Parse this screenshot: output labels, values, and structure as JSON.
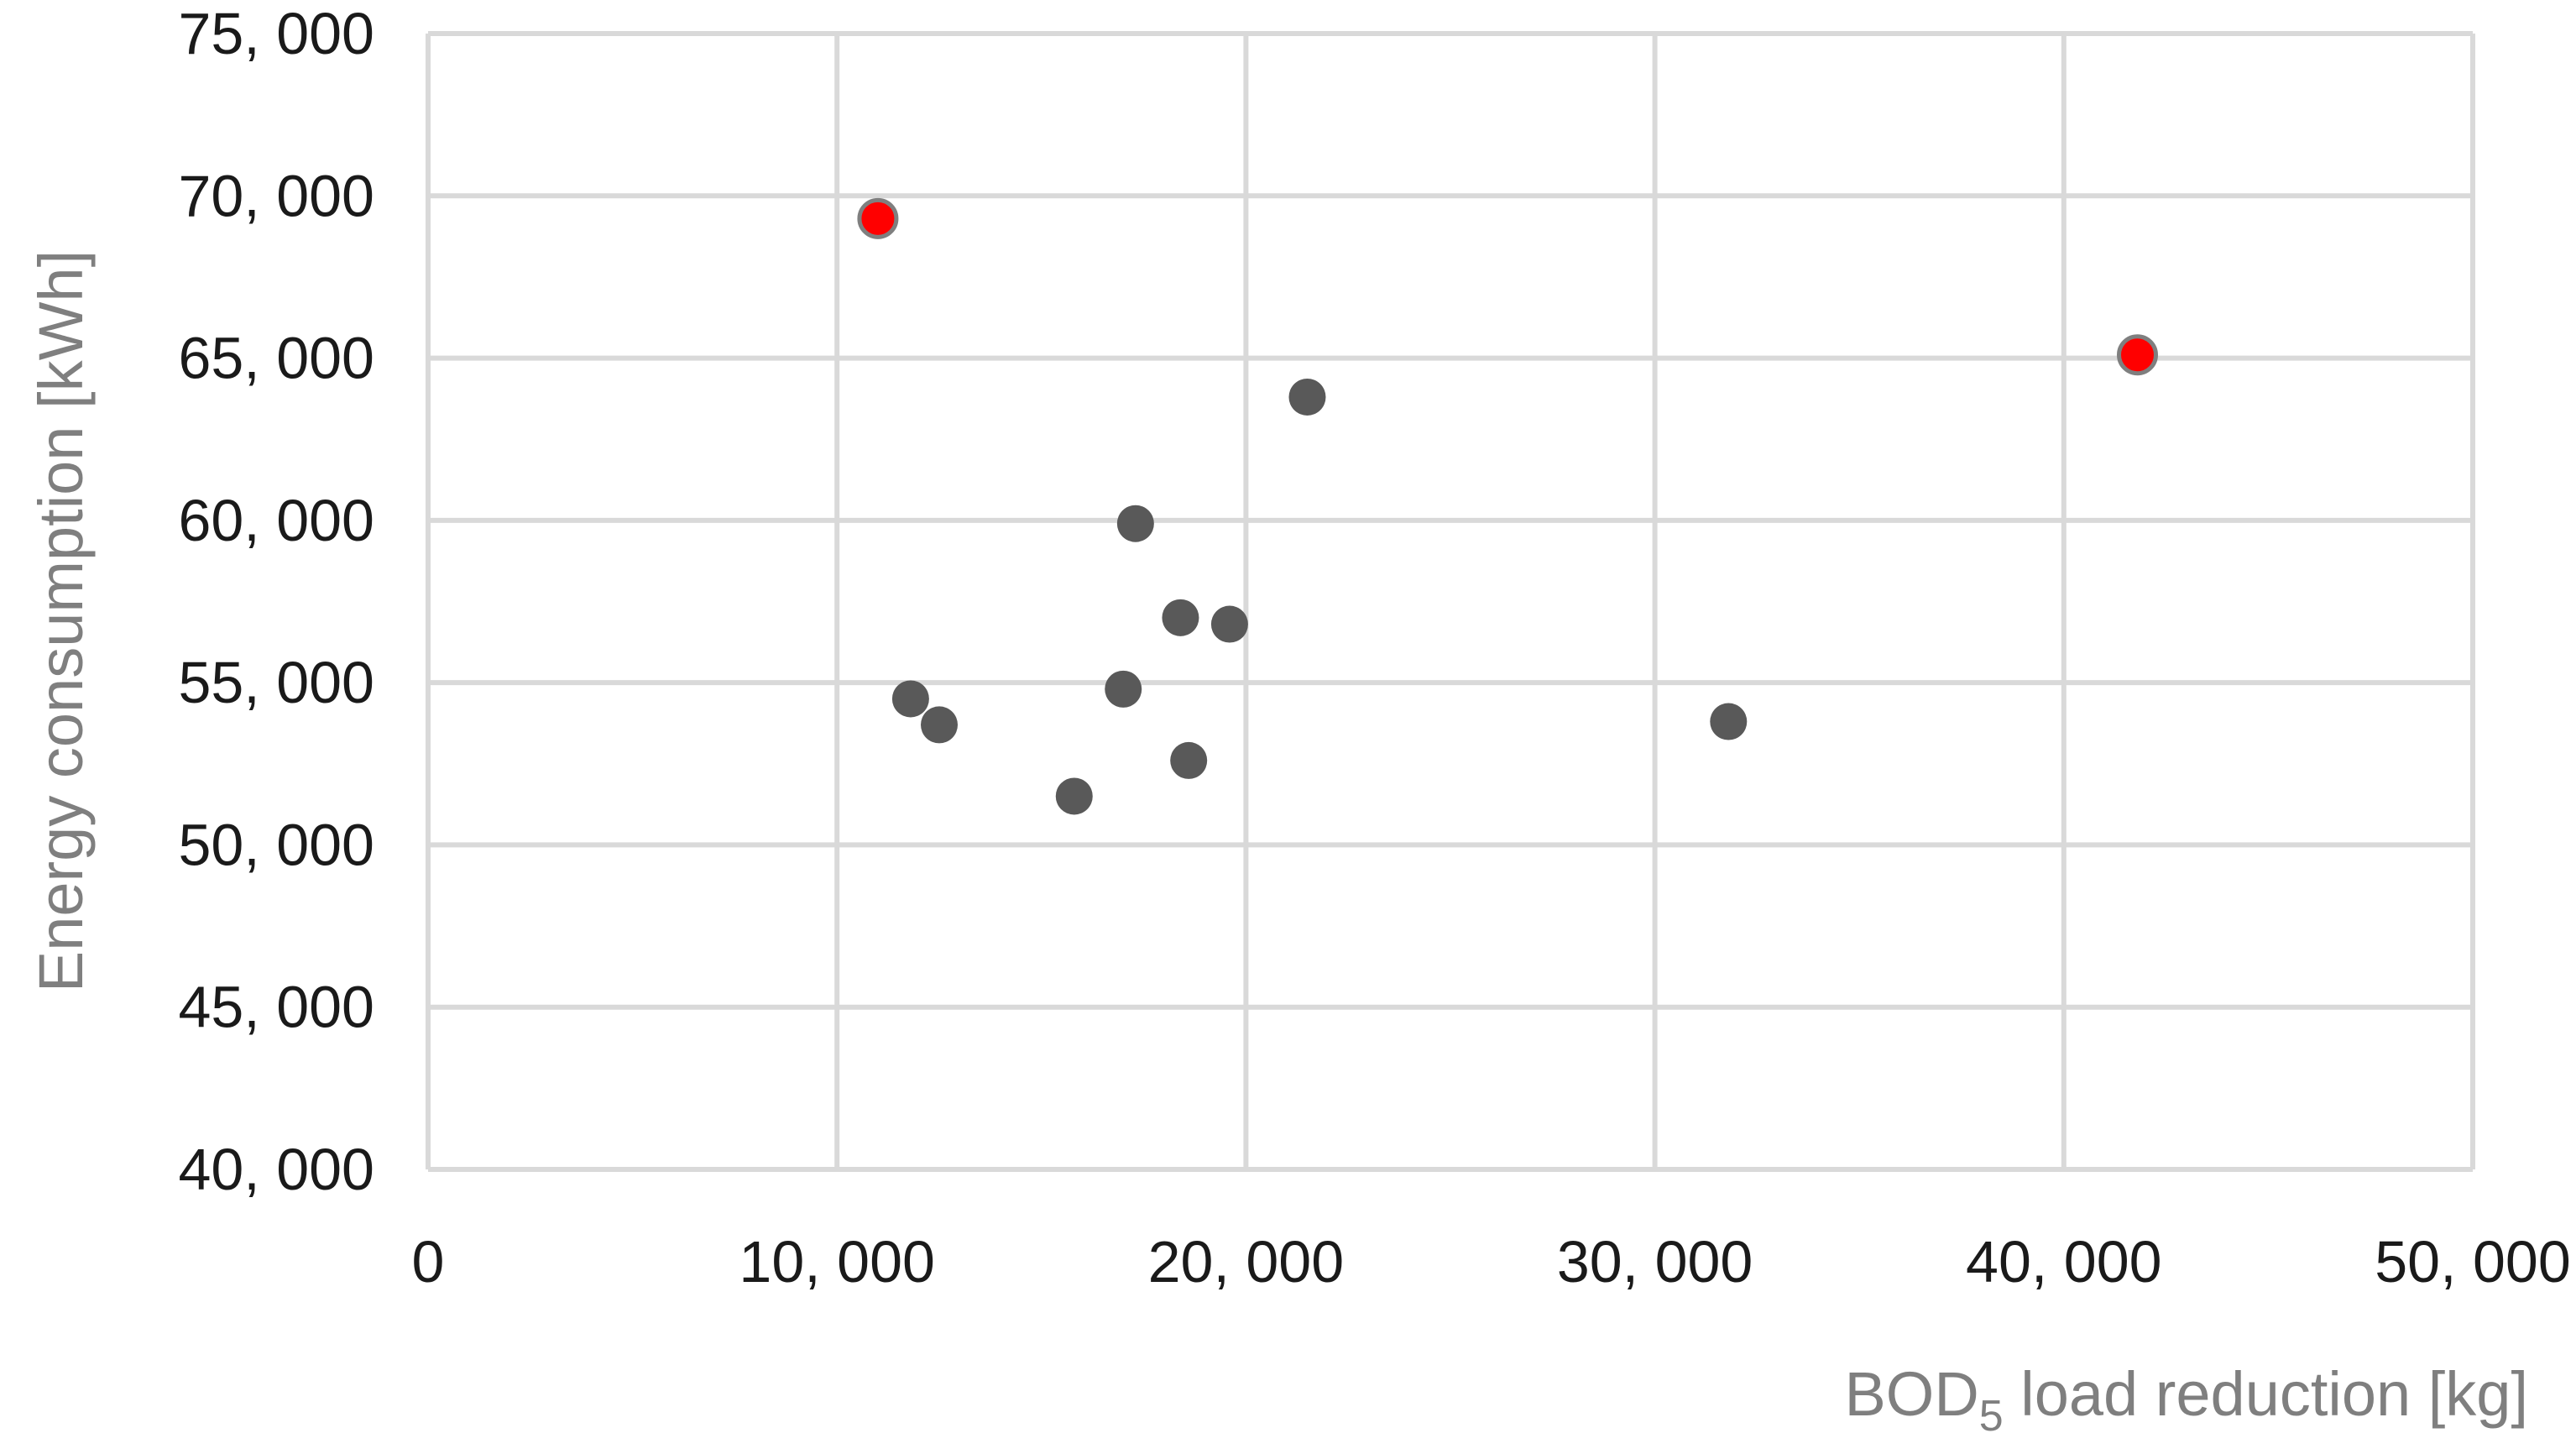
{
  "chart_data": {
    "type": "scatter",
    "xlabel": {
      "main": "BOD",
      "sub": "5",
      "rest": " load reduction [kg]"
    },
    "ylabel": "Energy consumption [kWh]",
    "xlim": [
      0,
      50000
    ],
    "ylim": [
      40000,
      75000
    ],
    "x_ticks": [
      0,
      10000,
      20000,
      30000,
      40000,
      50000
    ],
    "y_ticks": [
      40000,
      45000,
      50000,
      55000,
      60000,
      65000,
      70000,
      75000
    ],
    "x_tick_labels": [
      "0",
      "10, 000",
      "20, 000",
      "30, 000",
      "40, 000",
      "50, 000"
    ],
    "y_tick_labels": [
      "40, 000",
      "45, 000",
      "50, 000",
      "55, 000",
      "60, 000",
      "65, 000",
      "70, 000",
      "75, 000"
    ],
    "grid": true,
    "points": [
      {
        "x": 11000,
        "y": 69300,
        "highlight": true
      },
      {
        "x": 41800,
        "y": 65100,
        "highlight": true
      },
      {
        "x": 21500,
        "y": 63800,
        "highlight": false
      },
      {
        "x": 17300,
        "y": 59900,
        "highlight": false
      },
      {
        "x": 18400,
        "y": 57000,
        "highlight": false
      },
      {
        "x": 19600,
        "y": 56800,
        "highlight": false
      },
      {
        "x": 17000,
        "y": 54800,
        "highlight": false
      },
      {
        "x": 11800,
        "y": 54500,
        "highlight": false
      },
      {
        "x": 12500,
        "y": 53700,
        "highlight": false
      },
      {
        "x": 31800,
        "y": 53800,
        "highlight": false
      },
      {
        "x": 18600,
        "y": 52600,
        "highlight": false
      },
      {
        "x": 15800,
        "y": 51500,
        "highlight": false
      }
    ],
    "colors": {
      "point": "#595959",
      "highlight": "#ff0000",
      "highlight_stroke": "#7f7f7f"
    }
  }
}
